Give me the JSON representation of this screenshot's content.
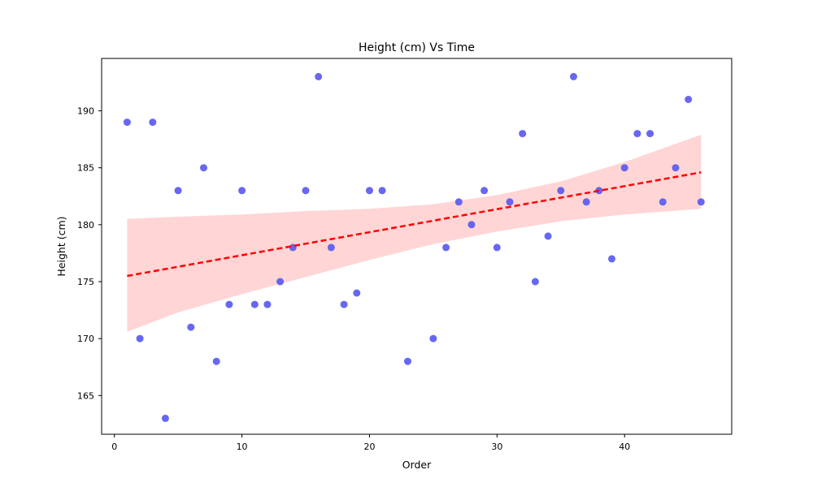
{
  "chart_data": {
    "type": "scatter",
    "title": "Height (cm) Vs Time",
    "xlabel": "Order",
    "ylabel": "Height (cm)",
    "xlim": [
      -1,
      48.4
    ],
    "ylim": [
      161.6,
      194.6
    ],
    "xticks": [
      0,
      10,
      20,
      30,
      40
    ],
    "yticks": [
      165,
      170,
      175,
      180,
      185,
      190
    ],
    "grid": false,
    "legend": "none",
    "colors": {
      "points": "#5a5af0",
      "regression_line": "#ff0000",
      "confidence_band": "#ffb3b3"
    },
    "series": [
      {
        "x": [
          1,
          2,
          3,
          4,
          5,
          6,
          7,
          8,
          9,
          10,
          11,
          12,
          13,
          14,
          15,
          16,
          17,
          18,
          19,
          20,
          21,
          23,
          25,
          26,
          27,
          28,
          29,
          30,
          31,
          32,
          33,
          34,
          35,
          36,
          37,
          38,
          39,
          40,
          41,
          42,
          43,
          44,
          45,
          46
        ],
        "y": [
          189,
          170,
          189,
          163,
          183,
          171,
          185,
          168,
          173,
          183,
          173,
          173,
          175,
          178,
          183,
          193,
          178,
          173,
          174,
          183,
          183,
          168,
          170,
          178,
          182,
          180,
          183,
          178,
          182,
          188,
          175,
          179,
          183,
          193,
          182,
          183,
          177,
          185,
          188,
          188,
          182,
          185,
          191,
          182
        ]
      }
    ],
    "regression": {
      "style": "dashed",
      "x": [
        1,
        46
      ],
      "y": [
        175.5,
        184.6
      ]
    },
    "confidence_band": {
      "x": [
        1,
        5,
        10,
        15,
        20,
        25,
        30,
        35,
        40,
        46
      ],
      "lower": [
        170.6,
        172.3,
        173.9,
        175.4,
        176.9,
        178.3,
        179.4,
        180.3,
        180.9,
        181.4
      ],
      "upper": [
        180.5,
        180.7,
        180.9,
        181.2,
        181.4,
        181.8,
        182.6,
        183.8,
        185.5,
        187.9
      ]
    }
  }
}
